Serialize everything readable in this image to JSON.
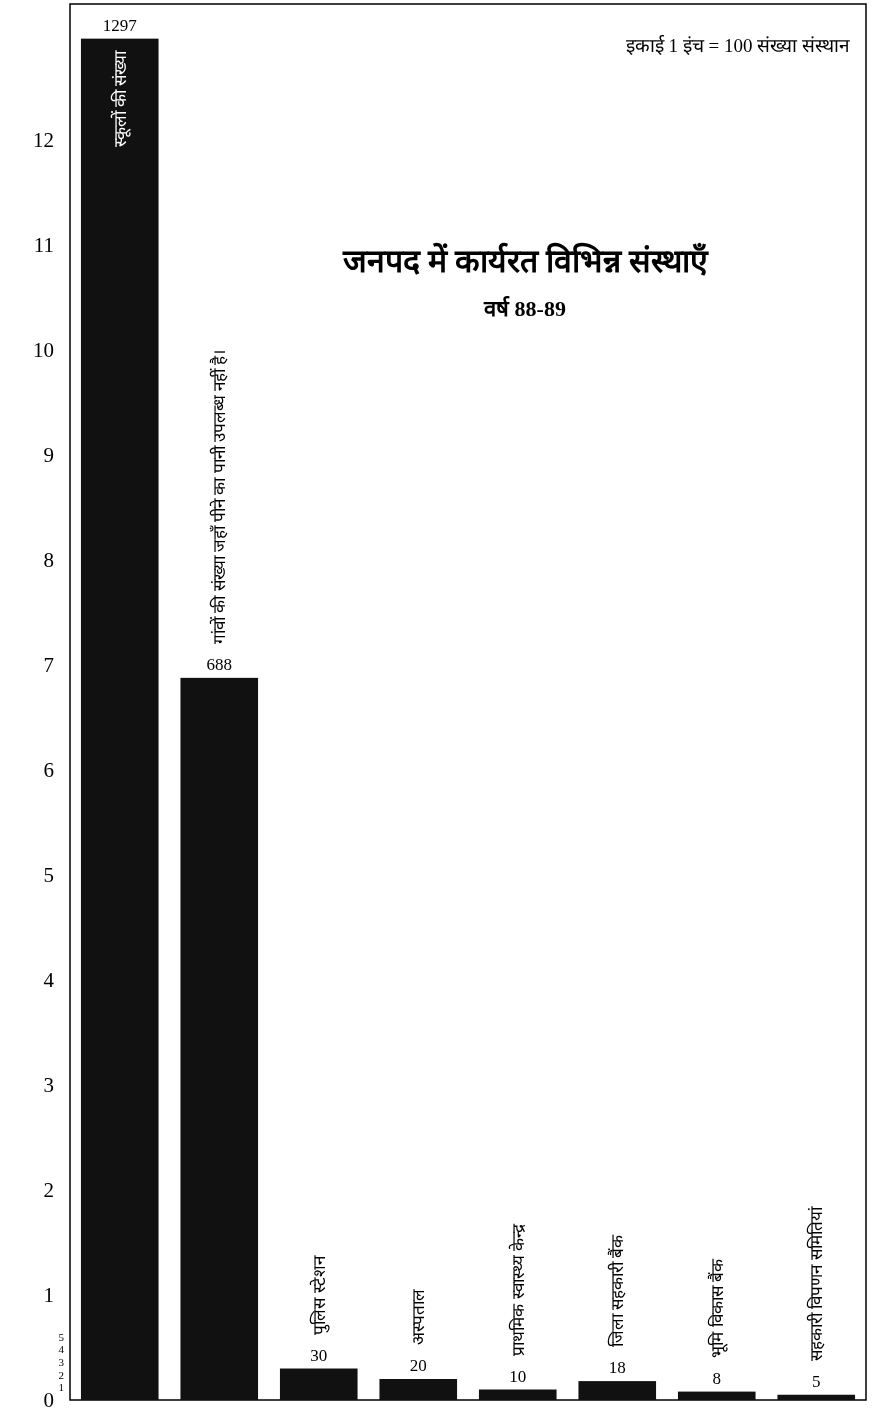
{
  "chart_data": {
    "type": "bar",
    "title": "जनपद में कार्यरत विभिन्न संस्थाएँ",
    "subtitle": "वर्ष 88-89",
    "annotations": [
      "इकाई 1 इंच = 100 संख्या संस्थान"
    ],
    "categories": [
      "स्कूलों की संख्या",
      "गांवों की संख्या जहाँ पीने का पानी उपलब्ध नहीं है।",
      "पुलिस स्टेशन",
      "अस्पताल",
      "प्राथमिक स्वास्थ्य केन्द्र",
      "जिला सहकारी बैंक",
      "भूमि विकास बैंक",
      "सहकारी विपणन समितियां"
    ],
    "values": [
      1297,
      688,
      30,
      20,
      10,
      18,
      8,
      5
    ],
    "data_labels": true,
    "color": "#111111",
    "ylim": [
      0,
      1330
    ],
    "y2lim": [
      0,
      13.3
    ],
    "y2ticks": [
      0,
      1,
      2,
      3,
      4,
      5,
      6,
      7,
      8,
      9,
      10,
      11,
      12
    ],
    "y3lim": [
      0,
      110
    ],
    "y3ticks": [
      1,
      2,
      3,
      4,
      5
    ]
  }
}
